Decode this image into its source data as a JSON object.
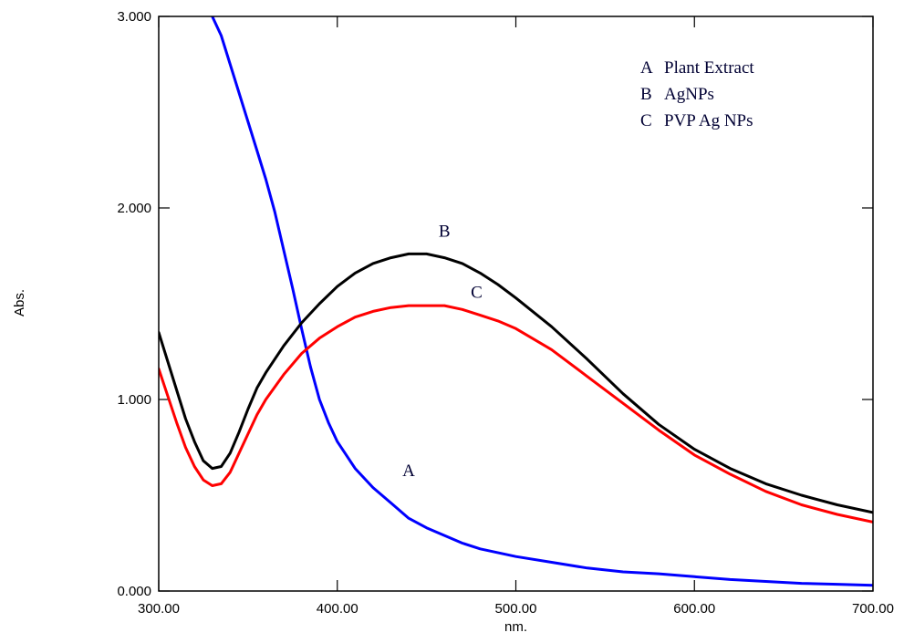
{
  "chart_data": {
    "type": "line",
    "title": "",
    "xlabel": "nm.",
    "ylabel": "Abs.",
    "xlim": [
      300,
      700
    ],
    "ylim": [
      0,
      3
    ],
    "x_ticks": [
      300,
      400,
      500,
      600,
      700
    ],
    "x_tick_labels": [
      "300.00",
      "400.00",
      "500.00",
      "600.00",
      "700.00"
    ],
    "y_ticks": [
      0,
      1,
      2,
      3
    ],
    "y_tick_labels": [
      "0.000",
      "1.000",
      "2.000",
      "3.000"
    ],
    "grid": false,
    "legend_position": "top-right",
    "legend": [
      {
        "key": "A",
        "text": "Plant Extract"
      },
      {
        "key": "B",
        "text": "AgNPs"
      },
      {
        "key": "C",
        "text": "PVP Ag NPs"
      }
    ],
    "series": [
      {
        "name": "A",
        "color": "#0000ff",
        "x": [
          330,
          335,
          340,
          345,
          350,
          355,
          360,
          365,
          370,
          375,
          380,
          385,
          390,
          395,
          400,
          410,
          420,
          430,
          440,
          450,
          460,
          470,
          480,
          500,
          520,
          540,
          560,
          580,
          600,
          620,
          640,
          660,
          680,
          700
        ],
        "y": [
          3.0,
          2.9,
          2.75,
          2.6,
          2.45,
          2.3,
          2.15,
          1.98,
          1.78,
          1.58,
          1.37,
          1.17,
          1.0,
          0.88,
          0.78,
          0.64,
          0.54,
          0.46,
          0.38,
          0.33,
          0.29,
          0.25,
          0.22,
          0.18,
          0.15,
          0.12,
          0.1,
          0.09,
          0.075,
          0.06,
          0.05,
          0.04,
          0.035,
          0.03
        ]
      },
      {
        "name": "B",
        "color": "#000000",
        "x": [
          300,
          305,
          310,
          315,
          320,
          325,
          330,
          335,
          340,
          345,
          350,
          355,
          360,
          370,
          380,
          390,
          400,
          410,
          420,
          430,
          440,
          450,
          460,
          470,
          480,
          490,
          500,
          520,
          540,
          560,
          580,
          600,
          620,
          640,
          660,
          680,
          700
        ],
        "y": [
          1.35,
          1.2,
          1.05,
          0.9,
          0.78,
          0.68,
          0.64,
          0.65,
          0.72,
          0.83,
          0.95,
          1.06,
          1.14,
          1.28,
          1.4,
          1.5,
          1.59,
          1.66,
          1.71,
          1.74,
          1.76,
          1.76,
          1.74,
          1.71,
          1.66,
          1.6,
          1.53,
          1.38,
          1.21,
          1.03,
          0.87,
          0.74,
          0.64,
          0.56,
          0.5,
          0.45,
          0.41
        ]
      },
      {
        "name": "C",
        "color": "#ff0000",
        "x": [
          300,
          305,
          310,
          315,
          320,
          325,
          330,
          335,
          340,
          345,
          350,
          355,
          360,
          370,
          380,
          390,
          400,
          410,
          420,
          430,
          440,
          450,
          460,
          470,
          480,
          490,
          500,
          520,
          540,
          560,
          580,
          600,
          620,
          640,
          660,
          680,
          700
        ],
        "y": [
          1.16,
          1.02,
          0.88,
          0.75,
          0.65,
          0.58,
          0.55,
          0.56,
          0.62,
          0.72,
          0.82,
          0.92,
          1.0,
          1.13,
          1.24,
          1.32,
          1.38,
          1.43,
          1.46,
          1.48,
          1.49,
          1.49,
          1.49,
          1.47,
          1.44,
          1.41,
          1.37,
          1.26,
          1.12,
          0.98,
          0.84,
          0.71,
          0.61,
          0.52,
          0.45,
          0.4,
          0.36
        ]
      }
    ],
    "curve_labels": [
      {
        "text": "A",
        "x": 440,
        "y": 0.6
      },
      {
        "text": "B",
        "x": 460,
        "y": 1.85
      },
      {
        "text": "C",
        "x": 478,
        "y": 1.53
      }
    ]
  }
}
